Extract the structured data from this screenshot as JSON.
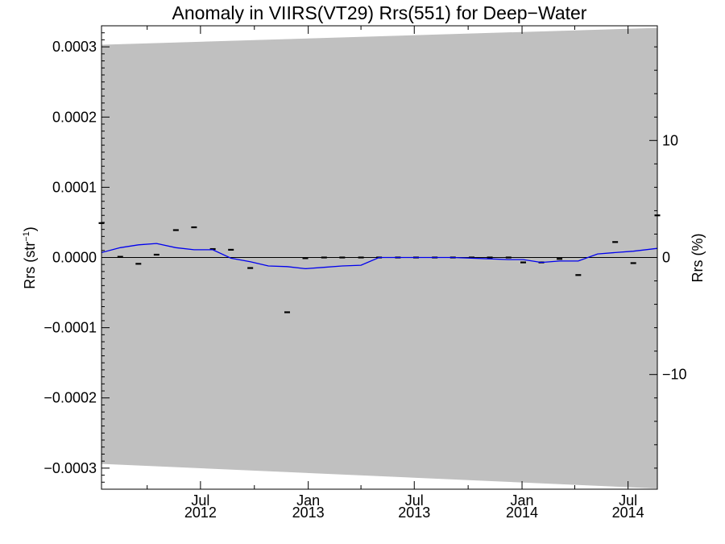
{
  "chart_data": {
    "type": "line",
    "title": "Anomaly in VIIRS(VT29) Rrs(551) for Deep−Water",
    "ylabel_left": {
      "pre": "Rrs (str",
      "sup": "−1",
      "post": ")"
    },
    "ylabel_right": "Rrs (%)",
    "xlim": [
      "2012-01-14",
      "2014-08-20"
    ],
    "ylim_left": [
      -0.00033,
      0.00033
    ],
    "ylim_right": [
      -19.8,
      19.8
    ],
    "x_ticks": [
      {
        "date": "2012-07-01",
        "month": "Jul",
        "year": "2012"
      },
      {
        "date": "2013-01-01",
        "month": "Jan",
        "year": "2013"
      },
      {
        "date": "2013-07-01",
        "month": "Jul",
        "year": "2013"
      },
      {
        "date": "2014-01-01",
        "month": "Jan",
        "year": "2014"
      },
      {
        "date": "2014-07-01",
        "month": "Jul",
        "year": "2014"
      }
    ],
    "x_minor_ticks": [
      "2012-01-01",
      "2012-04-01",
      "2012-10-01",
      "2013-04-01",
      "2013-10-01",
      "2014-04-01"
    ],
    "y_ticks_left": [
      {
        "value": 0.0003,
        "label": "0.0003"
      },
      {
        "value": 0.0002,
        "label": "0.0002"
      },
      {
        "value": 0.0001,
        "label": "0.0001"
      },
      {
        "value": 0.0,
        "label": "0.0000"
      },
      {
        "value": -0.0001,
        "label": "−0.0001"
      },
      {
        "value": -0.0002,
        "label": "−0.0002"
      },
      {
        "value": -0.0003,
        "label": "−0.0003"
      }
    ],
    "y_ticks_right": [
      {
        "value": 10,
        "label": "10"
      },
      {
        "value": 0,
        "label": "0"
      },
      {
        "value": -10,
        "label": "−10"
      }
    ],
    "uncertainty_band": {
      "color": "#c0c0c0",
      "upper": [
        [
          "2012-01-14",
          0.000303
        ],
        [
          "2014-08-20",
          0.000327
        ]
      ],
      "lower": [
        [
          "2012-01-14",
          -0.000294
        ],
        [
          "2014-08-20",
          -0.000329
        ]
      ]
    },
    "zero_line": {
      "value": 0,
      "color": "#000000"
    },
    "series": [
      {
        "kind": "points",
        "color": "#000000",
        "points": [
          [
            "2012-01-14",
            4.9e-05
          ],
          [
            "2012-02-15",
            1e-06
          ],
          [
            "2012-03-17",
            -9e-06
          ],
          [
            "2012-04-17",
            4e-06
          ],
          [
            "2012-05-20",
            3.9e-05
          ],
          [
            "2012-06-20",
            4.3e-05
          ],
          [
            "2012-07-22",
            1.2e-05
          ],
          [
            "2012-08-22",
            1.1e-05
          ],
          [
            "2012-09-24",
            -1.5e-05
          ],
          [
            "2012-11-26",
            -7.8e-05
          ],
          [
            "2012-12-27",
            -1e-06
          ],
          [
            "2013-01-28",
            0.0
          ],
          [
            "2013-02-28",
            0.0
          ],
          [
            "2013-04-01",
            0.0
          ],
          [
            "2013-05-02",
            0.0
          ],
          [
            "2013-06-03",
            0.0
          ],
          [
            "2013-07-04",
            0.0
          ],
          [
            "2013-08-05",
            0.0
          ],
          [
            "2013-09-05",
            0.0
          ],
          [
            "2013-10-07",
            0.0
          ],
          [
            "2013-11-07",
            0.0
          ],
          [
            "2013-12-09",
            0.0
          ],
          [
            "2014-01-03",
            -7e-06
          ],
          [
            "2014-02-03",
            -7e-06
          ],
          [
            "2014-03-06",
            -2e-06
          ],
          [
            "2014-04-07",
            -2.5e-05
          ],
          [
            "2014-06-09",
            2.2e-05
          ],
          [
            "2014-07-10",
            -8e-06
          ],
          [
            "2014-08-20",
            6e-05
          ]
        ]
      },
      {
        "kind": "line",
        "color": "#0000ee",
        "points": [
          [
            "2012-01-14",
            7e-06
          ],
          [
            "2012-02-15",
            1.4e-05
          ],
          [
            "2012-03-17",
            1.8e-05
          ],
          [
            "2012-04-17",
            2e-05
          ],
          [
            "2012-05-20",
            1.4e-05
          ],
          [
            "2012-06-20",
            1.1e-05
          ],
          [
            "2012-07-22",
            1.1e-05
          ],
          [
            "2012-08-22",
            -1e-06
          ],
          [
            "2012-09-24",
            -6e-06
          ],
          [
            "2012-10-25",
            -1.2e-05
          ],
          [
            "2012-11-26",
            -1.3e-05
          ],
          [
            "2012-12-27",
            -1.6e-05
          ],
          [
            "2013-01-28",
            -1.4e-05
          ],
          [
            "2013-02-28",
            -1.2e-05
          ],
          [
            "2013-04-01",
            -1.1e-05
          ],
          [
            "2013-05-02",
            0.0
          ],
          [
            "2013-09-05",
            0.0
          ],
          [
            "2013-10-07",
            -1e-06
          ],
          [
            "2013-11-07",
            -2e-06
          ],
          [
            "2013-12-09",
            -3e-06
          ],
          [
            "2014-01-03",
            -3e-06
          ],
          [
            "2014-02-03",
            -7e-06
          ],
          [
            "2014-03-06",
            -5e-06
          ],
          [
            "2014-04-07",
            -5e-06
          ],
          [
            "2014-05-10",
            5e-06
          ],
          [
            "2014-06-09",
            7e-06
          ],
          [
            "2014-07-10",
            9e-06
          ],
          [
            "2014-08-20",
            1.3e-05
          ]
        ]
      }
    ]
  }
}
